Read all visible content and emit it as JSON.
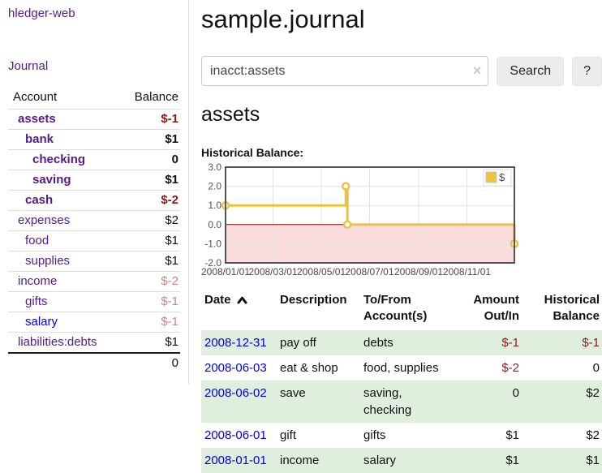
{
  "header": {
    "title": "sample.journal"
  },
  "search": {
    "value": "inacct:assets",
    "clear_icon": "×",
    "button_label": "Search",
    "help_label": "?"
  },
  "sidebar": {
    "brand": "hledger-web",
    "journal_link": "Journal",
    "accounts": {
      "headers": {
        "account": "Account",
        "balance": "Balance"
      },
      "rows": [
        {
          "name": "assets",
          "depth": 1,
          "bold": true,
          "balance": "$-1",
          "negative": true,
          "link_style": "visited"
        },
        {
          "name": "bank",
          "depth": 2,
          "bold": true,
          "balance": "$1",
          "negative": false,
          "link_style": "visited"
        },
        {
          "name": "checking",
          "depth": 3,
          "bold": true,
          "balance": "0",
          "negative": false,
          "link_style": "visited"
        },
        {
          "name": "saving",
          "depth": 3,
          "bold": true,
          "balance": "$1",
          "negative": false,
          "link_style": "visited"
        },
        {
          "name": "cash",
          "depth": 2,
          "bold": true,
          "balance": "$-2",
          "negative": true,
          "link_style": "visited"
        },
        {
          "name": "expenses",
          "depth": 1,
          "bold": false,
          "balance": "$2",
          "negative": false,
          "link_style": "visited"
        },
        {
          "name": "food",
          "depth": 2,
          "bold": false,
          "balance": "$1",
          "negative": false,
          "link_style": "visited"
        },
        {
          "name": "supplies",
          "depth": 2,
          "bold": false,
          "balance": "$1",
          "negative": false,
          "link_style": "visited"
        },
        {
          "name": "income",
          "depth": 1,
          "bold": false,
          "balance": "$-2",
          "negative": true,
          "link_style": "visited"
        },
        {
          "name": "gifts",
          "depth": 2,
          "bold": false,
          "balance": "$-1",
          "negative": true,
          "link_style": "visited"
        },
        {
          "name": "salary",
          "depth": 2,
          "bold": false,
          "balance": "$-1",
          "negative": true,
          "link_style": "unvisited"
        },
        {
          "name": "liabilities:debts",
          "depth": 1,
          "bold": false,
          "balance": "$1",
          "negative": false,
          "link_style": "visited"
        }
      ],
      "total": "0"
    }
  },
  "account_page": {
    "title": "assets",
    "chart_label": "Historical Balance:"
  },
  "chart_data": {
    "type": "line",
    "style": "step",
    "title": "Historical Balance",
    "series": [
      {
        "name": "$",
        "color": "#edc240",
        "points": [
          [
            "2008-01-01",
            1
          ],
          [
            "2008-06-01",
            2
          ],
          [
            "2008-06-03",
            0
          ],
          [
            "2008-12-31",
            -1
          ]
        ]
      }
    ],
    "x_start": "2008-01-01",
    "xlim_days": [
      0,
      365
    ],
    "ylim": [
      -2,
      3
    ],
    "y_ticks": [
      3.0,
      2.0,
      1.0,
      0.0,
      -1.0,
      -2.0
    ],
    "x_ticks": [
      "2008/01/01",
      "2008/03/01",
      "2008/05/01",
      "2008/07/01",
      "2008/09/01",
      "2008/11/01"
    ],
    "grid": true,
    "legend_position": "top-right",
    "negative_region_color": "#fbdcdc",
    "zero_line_color": "#8b0000"
  },
  "transactions": {
    "headers": {
      "date": "Date",
      "description": "Description",
      "accounts": "To/From Account(s)",
      "amount": "Amount Out/In",
      "balance": "Historical Balance"
    },
    "rows": [
      {
        "date": "2008-12-31",
        "description": "pay off",
        "accounts": "debts",
        "amount": "$-1",
        "amount_negative": true,
        "balance": "$-1",
        "balance_negative": true
      },
      {
        "date": "2008-06-03",
        "description": "eat & shop",
        "accounts": "food, supplies",
        "amount": "$-2",
        "amount_negative": true,
        "balance": "0",
        "balance_negative": false
      },
      {
        "date": "2008-06-02",
        "description": "save",
        "accounts": "saving, checking",
        "amount": "0",
        "amount_negative": false,
        "balance": "$2",
        "balance_negative": false
      },
      {
        "date": "2008-06-01",
        "description": "gift",
        "accounts": "gifts",
        "amount": "$1",
        "amount_negative": false,
        "balance": "$2",
        "balance_negative": false
      },
      {
        "date": "2008-01-01",
        "description": "income",
        "accounts": "salary",
        "amount": "$1",
        "amount_negative": false,
        "balance": "$1",
        "balance_negative": false
      }
    ]
  },
  "colors": {
    "link_purple": "#551a8b",
    "link_blue": "#0000ee",
    "negative_strong": "#8b1717",
    "negative_soft": "#cb8585",
    "table_negative": "#8f1b1b",
    "row_stripe_green": "#dfeedd",
    "chart_line_gold": "#edc240",
    "chart_negative_fill": "#fbdcdc",
    "chart_zero_line": "#8b0000",
    "chart_border": "#545454"
  }
}
